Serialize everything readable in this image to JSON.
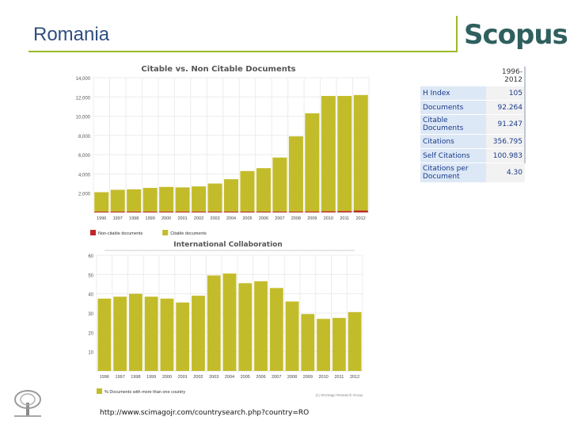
{
  "slide": {
    "title": "Romania",
    "logo_text": "Scopus",
    "footer_url": "http://www.scimagojr.com/countrysearch.php?country=RO",
    "accent_color": "#9bbb2a"
  },
  "stats_table": {
    "header": "1996-2012",
    "rows": [
      {
        "label": "H Index",
        "value": "105"
      },
      {
        "label": "Documents",
        "value": "92.264"
      },
      {
        "label": "Citable Documents",
        "value": "91.247"
      },
      {
        "label": "Citations",
        "value": "356.795"
      },
      {
        "label": "Self Citations",
        "value": "100.983"
      },
      {
        "label": "Citations per Document",
        "value": "4.30"
      }
    ]
  },
  "chart_data": [
    {
      "type": "bar",
      "title": "Citable vs. Non Citable Documents",
      "categories": [
        "1996",
        "1997",
        "1998",
        "1999",
        "2000",
        "2001",
        "2002",
        "2003",
        "2004",
        "2005",
        "2006",
        "2007",
        "2008",
        "2009",
        "2010",
        "2011",
        "2012"
      ],
      "series": [
        {
          "name": "Citable documents",
          "color": "#c3bc2a",
          "values": [
            2100,
            2350,
            2400,
            2550,
            2650,
            2600,
            2700,
            3000,
            3450,
            4300,
            4600,
            5700,
            7900,
            10300,
            12100,
            12100,
            12200
          ]
        },
        {
          "name": "Non-citable documents",
          "color": "#c0282d",
          "values": [
            20,
            20,
            25,
            25,
            30,
            30,
            30,
            35,
            40,
            45,
            50,
            55,
            70,
            90,
            110,
            130,
            190
          ]
        }
      ],
      "yticks": [
        "2,000",
        "4,000",
        "6,000",
        "8,000",
        "10,000",
        "12,000",
        "14,000"
      ],
      "ytick_values": [
        2000,
        4000,
        6000,
        8000,
        10000,
        12000,
        14000
      ],
      "ylim": [
        0,
        14000
      ],
      "legend_position": "bottom-left"
    },
    {
      "type": "bar",
      "title": "International Collaboration",
      "categories": [
        "1996",
        "1997",
        "1998",
        "1999",
        "2000",
        "2001",
        "2002",
        "2003",
        "2004",
        "2005",
        "2006",
        "2007",
        "2008",
        "2009",
        "2010",
        "2011",
        "2012"
      ],
      "series": [
        {
          "name": "% Documents with more than one country",
          "color": "#c3bc2a",
          "values": [
            37.5,
            38.5,
            40.0,
            38.5,
            37.5,
            35.5,
            39.0,
            49.5,
            50.5,
            45.5,
            46.5,
            43.0,
            36.0,
            29.5,
            27.0,
            27.5,
            30.5
          ]
        }
      ],
      "yticks": [
        "10",
        "20",
        "30",
        "40",
        "50",
        "60"
      ],
      "ytick_values": [
        10,
        20,
        30,
        40,
        50,
        60
      ],
      "ylim": [
        0,
        60
      ],
      "credit": "(c) SCImago Research Group",
      "legend_position": "bottom-left"
    }
  ]
}
